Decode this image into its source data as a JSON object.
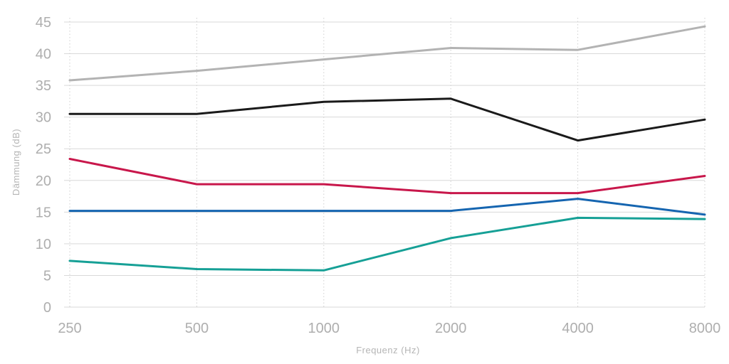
{
  "chart_data": {
    "type": "line",
    "xlabel": "Frequenz (Hz)",
    "ylabel": "Dämmung (dB)",
    "ylim": [
      0,
      45
    ],
    "yticks": [
      0,
      5,
      10,
      15,
      20,
      25,
      30,
      35,
      40,
      45
    ],
    "categories": [
      "250",
      "500",
      "1000",
      "2000",
      "4000",
      "8000"
    ],
    "grid": "horizontal solid, vertical dotted",
    "series": [
      {
        "color": "#b3b3b3",
        "values": [
          35.8,
          37.3,
          39.1,
          40.9,
          40.6,
          44.3
        ]
      },
      {
        "color": "#1a1a1a",
        "values": [
          30.5,
          30.5,
          32.4,
          32.9,
          26.3,
          29.6
        ]
      },
      {
        "color": "#c8174b",
        "values": [
          23.4,
          19.4,
          19.4,
          18.0,
          18.0,
          20.7
        ]
      },
      {
        "color": "#1565b0",
        "values": [
          15.2,
          15.2,
          15.2,
          15.2,
          17.1,
          14.6
        ]
      },
      {
        "color": "#16a096",
        "values": [
          7.3,
          6.0,
          5.8,
          10.9,
          14.1,
          13.9
        ]
      }
    ]
  }
}
